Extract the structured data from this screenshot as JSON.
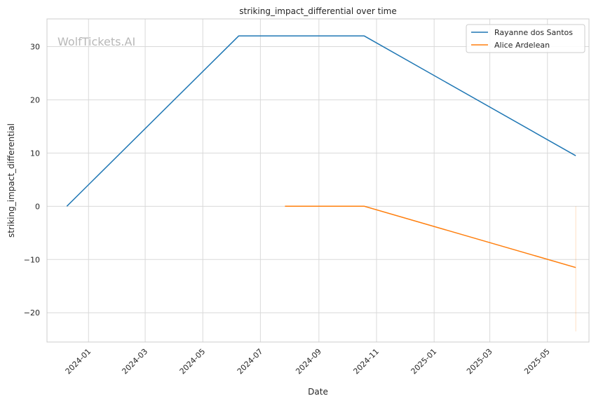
{
  "chart_data": {
    "type": "line",
    "title": "striking_impact_differential over time",
    "xlabel": "Date",
    "ylabel": "striking_impact_differential",
    "watermark": "WolfTickets.AI",
    "x_ticks": [
      "2024-01-01",
      "2024-03-01",
      "2024-05-01",
      "2024-07-01",
      "2024-09-01",
      "2024-11-01",
      "2025-01-01",
      "2025-03-01",
      "2025-05-01"
    ],
    "x_tick_labels": [
      "2024-01",
      "2024-03",
      "2024-05",
      "2024-07",
      "2024-09",
      "2024-11",
      "2025-01",
      "2025-03",
      "2025-05"
    ],
    "xlim": [
      "2023-11-18",
      "2025-06-14"
    ],
    "y_ticks": [
      -20,
      -10,
      0,
      10,
      20,
      30
    ],
    "y_tick_labels": [
      "−20",
      "−10",
      "0",
      "10",
      "20",
      "30"
    ],
    "ylim": [
      -25.5,
      35.2
    ],
    "grid": true,
    "legend_position": "top-right",
    "series": [
      {
        "name": "Rayanne dos Santos",
        "color": "#1f77b4",
        "points": [
          {
            "x": "2023-12-09",
            "y": 0
          },
          {
            "x": "2024-06-08",
            "y": 32
          },
          {
            "x": "2024-10-19",
            "y": 32
          },
          {
            "x": "2025-05-31",
            "y": 9.5
          }
        ]
      },
      {
        "name": "Alice Ardelean",
        "color": "#ff7f0e",
        "points": [
          {
            "x": "2024-07-27",
            "y": 0
          },
          {
            "x": "2024-10-19",
            "y": 0
          },
          {
            "x": "2025-05-31",
            "y": -11.5
          }
        ]
      }
    ],
    "vertical_marker": {
      "x": "2025-05-31",
      "y_from": 0,
      "y_to": -23.5,
      "color": "#ff7f0e"
    }
  }
}
